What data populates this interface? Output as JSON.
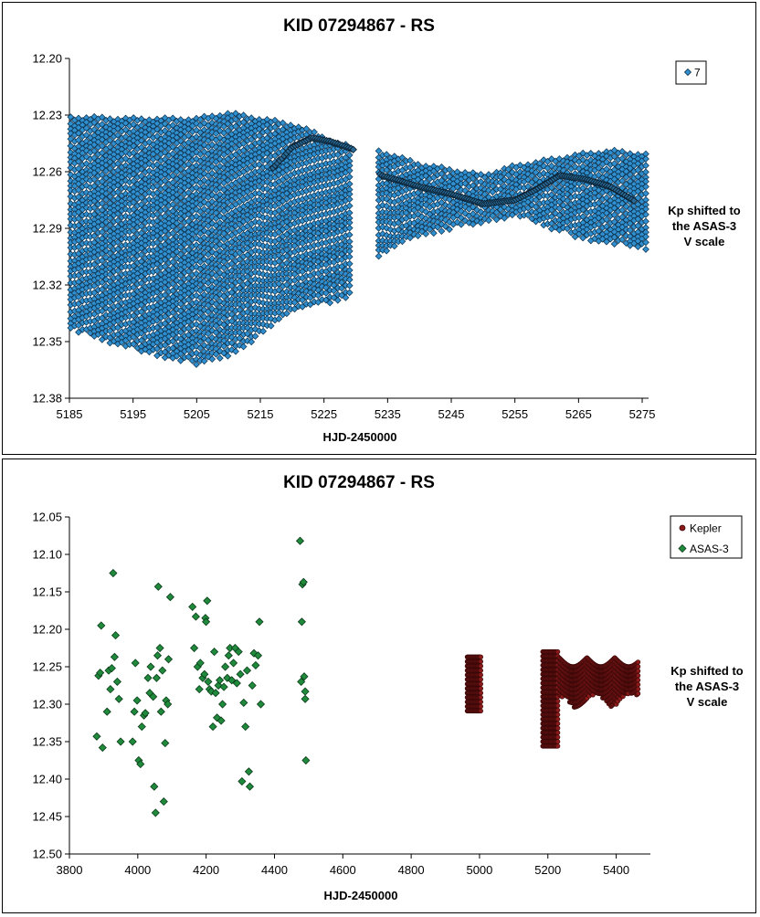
{
  "chart_data": [
    {
      "type": "scatter",
      "title": "KID 07294867  - RS",
      "xlabel": "HJD-2450000",
      "side_label": [
        "Kp shifted to",
        "the ASAS-3",
        "V scale"
      ],
      "xlim": [
        5185,
        5276
      ],
      "ylim": [
        12.2,
        12.38
      ],
      "y_inverted": true,
      "x_ticks": [
        "5185",
        "5195",
        "5205",
        "5215",
        "5225",
        "5235",
        "5245",
        "5255",
        "5265",
        "5275"
      ],
      "y_ticks": [
        "12.20",
        "12.23",
        "12.26",
        "12.29",
        "12.32",
        "12.35",
        "12.38"
      ],
      "legend_position": "top-right",
      "series": [
        {
          "name": "7",
          "color": "#2f8fcf",
          "marker": "diamond",
          "segments": [
            {
              "x0": 5185.2,
              "x1": 5229.6,
              "period": 0.31,
              "upper": [
                [
                  5185,
                  12.231
                ],
                [
                  5195,
                  12.232
                ],
                [
                  5205,
                  12.232
                ],
                [
                  5210,
                  12.229
                ],
                [
                  5215,
                  12.232
                ],
                [
                  5220,
                  12.235
                ],
                [
                  5224,
                  12.24
                ],
                [
                  5227,
                  12.245
                ],
                [
                  5229.6,
                  12.247
                ]
              ],
              "lower": [
                [
                  5185,
                  12.343
                ],
                [
                  5190,
                  12.349
                ],
                [
                  5195,
                  12.354
                ],
                [
                  5200,
                  12.358
                ],
                [
                  5205,
                  12.362
                ],
                [
                  5210,
                  12.357
                ],
                [
                  5215,
                  12.347
                ],
                [
                  5220,
                  12.335
                ],
                [
                  5225,
                  12.33
                ],
                [
                  5229.6,
                  12.325
                ]
              ]
            },
            {
              "x0": 5233.6,
              "x1": 5276,
              "period": 0.31,
              "upper": [
                [
                  5233.6,
                  12.249
                ],
                [
                  5240,
                  12.256
                ],
                [
                  5245,
                  12.259
                ],
                [
                  5250,
                  12.262
                ],
                [
                  5255,
                  12.257
                ],
                [
                  5260,
                  12.254
                ],
                [
                  5265,
                  12.251
                ],
                [
                  5270,
                  12.249
                ],
                [
                  5276,
                  12.251
                ]
              ],
              "lower": [
                [
                  5233.6,
                  12.305
                ],
                [
                  5238,
                  12.296
                ],
                [
                  5245,
                  12.29
                ],
                [
                  5250,
                  12.287
                ],
                [
                  5255,
                  12.283
                ],
                [
                  5260,
                  12.289
                ],
                [
                  5265,
                  12.295
                ],
                [
                  5270,
                  12.298
                ],
                [
                  5276,
                  12.301
                ]
              ]
            }
          ],
          "dark_band": [
            [
              5217,
              12.258
            ],
            [
              5220,
              12.247
            ],
            [
              5223,
              12.242
            ],
            [
              5226,
              12.244
            ],
            [
              5229.5,
              12.248
            ],
            [
              5234,
              12.262
            ],
            [
              5240,
              12.268
            ],
            [
              5245,
              12.272
            ],
            [
              5250,
              12.277
            ],
            [
              5255,
              12.275
            ],
            [
              5258,
              12.27
            ],
            [
              5262,
              12.262
            ],
            [
              5266,
              12.264
            ],
            [
              5270,
              12.268
            ],
            [
              5274,
              12.276
            ]
          ]
        }
      ]
    },
    {
      "type": "scatter",
      "title": "KID 07294867  - RS",
      "xlabel": "HJD-2450000",
      "side_label": [
        "Kp shifted to",
        "the ASAS-3",
        "V scale"
      ],
      "xlim": [
        3800,
        5500
      ],
      "ylim": [
        12.05,
        12.5
      ],
      "y_inverted": true,
      "x_ticks": [
        "3800",
        "4000",
        "4200",
        "4400",
        "4600",
        "4800",
        "5000",
        "5200",
        "5400"
      ],
      "y_ticks": [
        "12.05",
        "12.10",
        "12.15",
        "12.20",
        "12.25",
        "12.30",
        "12.35",
        "12.40",
        "12.45",
        "12.50"
      ],
      "legend_position": "top-right",
      "series": [
        {
          "name": "Kepler",
          "color": "#8b1a1a",
          "marker": "circle",
          "bands": [
            {
              "x0": 4964,
              "x1": 5005,
              "top": 12.237,
              "bottom": 12.313
            },
            {
              "x0": 5185,
              "x1": 5230,
              "top": 12.23,
              "bottom": 12.362
            },
            {
              "x0": 5233,
              "x1": 5466,
              "top": 12.238,
              "bottom": 12.31
            }
          ]
        },
        {
          "name": "ASAS-3",
          "color": "#1f8a3c",
          "marker": "diamond",
          "points": [
            [
              3880,
              12.343
            ],
            [
              3885,
              12.262
            ],
            [
              3890,
              12.258
            ],
            [
              3893,
              12.195
            ],
            [
              3897,
              12.358
            ],
            [
              3910,
              12.31
            ],
            [
              3915,
              12.255
            ],
            [
              3920,
              12.28
            ],
            [
              3924,
              12.252
            ],
            [
              3928,
              12.125
            ],
            [
              3932,
              12.237
            ],
            [
              3935,
              12.208
            ],
            [
              3940,
              12.27
            ],
            [
              3945,
              12.293
            ],
            [
              3950,
              12.35
            ],
            [
              3985,
              12.35
            ],
            [
              3990,
              12.31
            ],
            [
              3993,
              12.245
            ],
            [
              3998,
              12.295
            ],
            [
              4003,
              12.375
            ],
            [
              4008,
              12.38
            ],
            [
              4012,
              12.33
            ],
            [
              4018,
              12.315
            ],
            [
              4022,
              12.312
            ],
            [
              4030,
              12.265
            ],
            [
              4035,
              12.285
            ],
            [
              4038,
              12.25
            ],
            [
              4045,
              12.29
            ],
            [
              4048,
              12.41
            ],
            [
              4052,
              12.445
            ],
            [
              4055,
              12.265
            ],
            [
              4058,
              12.235
            ],
            [
              4060,
              12.143
            ],
            [
              4065,
              12.225
            ],
            [
              4068,
              12.31
            ],
            [
              4072,
              12.255
            ],
            [
              4076,
              12.43
            ],
            [
              4080,
              12.352
            ],
            [
              4083,
              12.295
            ],
            [
              4088,
              12.3
            ],
            [
              4090,
              12.24
            ],
            [
              4095,
              12.157
            ],
            [
              4160,
              12.17
            ],
            [
              4165,
              12.225
            ],
            [
              4170,
              12.183
            ],
            [
              4175,
              12.25
            ],
            [
              4180,
              12.28
            ],
            [
              4183,
              12.245
            ],
            [
              4190,
              12.265
            ],
            [
              4195,
              12.26
            ],
            [
              4198,
              12.185
            ],
            [
              4200,
              12.19
            ],
            [
              4203,
              12.162
            ],
            [
              4206,
              12.27
            ],
            [
              4210,
              12.28
            ],
            [
              4215,
              12.283
            ],
            [
              4220,
              12.33
            ],
            [
              4224,
              12.23
            ],
            [
              4228,
              12.285
            ],
            [
              4232,
              12.318
            ],
            [
              4236,
              12.275
            ],
            [
              4240,
              12.268
            ],
            [
              4244,
              12.322
            ],
            [
              4248,
              12.3
            ],
            [
              4252,
              12.277
            ],
            [
              4256,
              12.25
            ],
            [
              4262,
              12.265
            ],
            [
              4266,
              12.235
            ],
            [
              4270,
              12.225
            ],
            [
              4275,
              12.268
            ],
            [
              4280,
              12.245
            ],
            [
              4285,
              12.225
            ],
            [
              4290,
              12.272
            ],
            [
              4295,
              12.23
            ],
            [
              4300,
              12.26
            ],
            [
              4305,
              12.403
            ],
            [
              4310,
              12.298
            ],
            [
              4315,
              12.33
            ],
            [
              4320,
              12.255
            ],
            [
              4325,
              12.39
            ],
            [
              4328,
              12.41
            ],
            [
              4335,
              12.275
            ],
            [
              4340,
              12.232
            ],
            [
              4345,
              12.248
            ],
            [
              4352,
              12.235
            ],
            [
              4356,
              12.19
            ],
            [
              4360,
              12.3
            ],
            [
              4475,
              12.082
            ],
            [
              4478,
              12.27
            ],
            [
              4480,
              12.19
            ],
            [
              4482,
              12.14
            ],
            [
              4485,
              12.137
            ],
            [
              4487,
              12.263
            ],
            [
              4490,
              12.293
            ],
            [
              4490,
              12.283
            ],
            [
              4492,
              12.375
            ]
          ]
        }
      ]
    }
  ]
}
